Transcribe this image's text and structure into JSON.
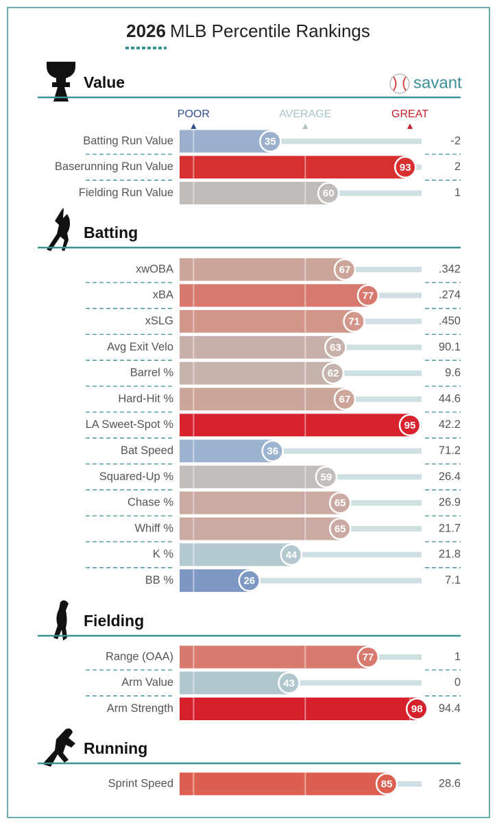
{
  "title_year": "2026",
  "title": "MLB Percentile Rankings",
  "logo": "savant",
  "chart_data": [
    {
      "type": "bar",
      "title": "Value",
      "xlim": [
        -4,
        100
      ],
      "xticks": [
        {
          "value": 2,
          "label": "POOR"
        },
        {
          "value": 50,
          "label": "AVERAGE"
        },
        {
          "value": 95,
          "label": "GREAT"
        }
      ],
      "categories": [
        "Batting Run Value",
        "Baserunning Run Value",
        "Fielding Run Value"
      ],
      "values": [
        35,
        93,
        60
      ],
      "stats": [
        "-2",
        "2",
        "1"
      ],
      "colors": [
        "#9ab0cc",
        "#d83030",
        "#c0bcb9"
      ]
    },
    {
      "type": "bar",
      "title": "Batting",
      "xlim": [
        -4,
        100
      ],
      "categories": [
        "xwOBA",
        "xBA",
        "xSLG",
        "Avg Exit Velo",
        "Barrel %",
        "Hard-Hit %",
        "LA Sweet-Spot %",
        "Bat Speed",
        "Squared-Up %",
        "Chase %",
        "Whiff %",
        "K %",
        "BB %"
      ],
      "values": [
        67,
        77,
        71,
        63,
        62,
        67,
        95,
        36,
        59,
        65,
        65,
        44,
        26
      ],
      "stats": [
        ".342",
        ".274",
        ".450",
        "90.1",
        "9.6",
        "44.6",
        "42.2",
        "71.2",
        "26.4",
        "26.9",
        "21.7",
        "21.8",
        "7.1"
      ],
      "colors": [
        "#cba59a",
        "#d8796d",
        "#d2968b",
        "#c9b1ab",
        "#c7b3ae",
        "#cba59a",
        "#d8222d",
        "#9cb3cf",
        "#c2bebb",
        "#caaaa2",
        "#caaaa2",
        "#b3c8cf",
        "#7d98c2"
      ]
    },
    {
      "type": "bar",
      "title": "Fielding",
      "xlim": [
        -4,
        100
      ],
      "categories": [
        "Range (OAA)",
        "Arm Value",
        "Arm Strength"
      ],
      "values": [
        77,
        43,
        98
      ],
      "stats": [
        "1",
        "0",
        "94.4"
      ],
      "colors": [
        "#d87a6e",
        "#b1c7ce",
        "#d51f2b"
      ]
    },
    {
      "type": "bar",
      "title": "Running",
      "xlim": [
        -4,
        100
      ],
      "categories": [
        "Sprint Speed"
      ],
      "values": [
        85
      ],
      "stats": [
        "28.6"
      ],
      "colors": [
        "#dd5f4f"
      ]
    }
  ]
}
